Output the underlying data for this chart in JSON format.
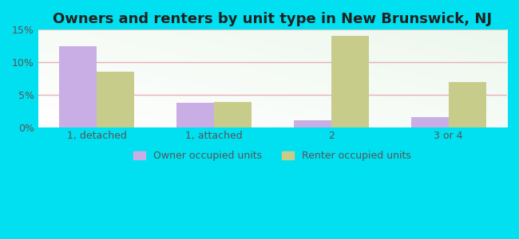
{
  "title": "Owners and renters by unit type in New Brunswick, NJ",
  "categories": [
    "1, detached",
    "1, attached",
    "2",
    "3 or 4"
  ],
  "owner_values": [
    12.5,
    3.7,
    1.0,
    1.5
  ],
  "renter_values": [
    8.5,
    3.9,
    14.0,
    7.0
  ],
  "owner_color": "#c9aee5",
  "renter_color": "#c8cc8a",
  "background_outer": "#00e0f0",
  "background_chart_color1": "#e8f5e8",
  "background_chart_color2": "#f5faf5",
  "ylim": [
    0,
    15
  ],
  "yticks": [
    0,
    5,
    10,
    15
  ],
  "ytick_labels": [
    "0%",
    "5%",
    "10%",
    "15%"
  ],
  "bar_width": 0.32,
  "legend_labels": [
    "Owner occupied units",
    "Renter occupied units"
  ],
  "title_fontsize": 13,
  "tick_fontsize": 9,
  "legend_fontsize": 9,
  "grid_color": "#cccccc",
  "pink_line_color": "#e8b4b8",
  "title_color": "#222222"
}
